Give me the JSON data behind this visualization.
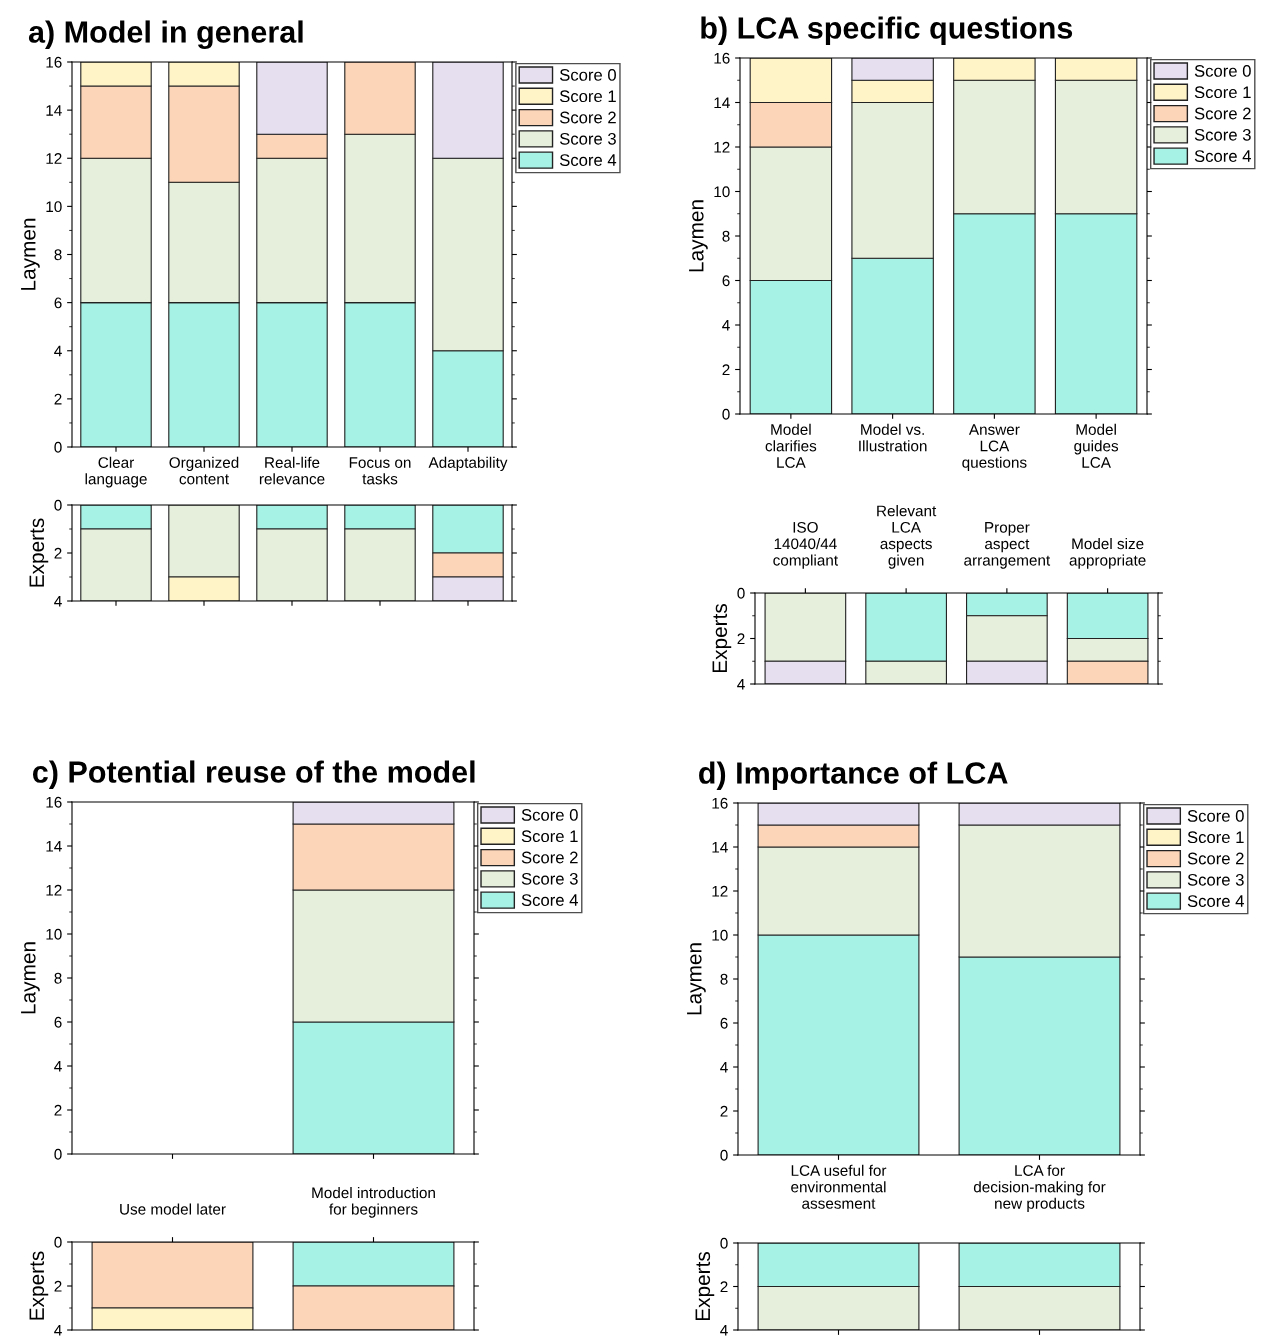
{
  "chart_data": [
    {
      "type": "bar",
      "title": "a) Model in general",
      "ylabel": "Laymen",
      "stacked": true,
      "legend": "top right",
      "categories": [
        "Clear\nlanguage",
        "Organized\ncontent",
        "Real-life\nrelevance",
        "Focus on\ntasks",
        "Adaptability"
      ],
      "ylim": [
        0,
        16
      ],
      "yticks": [
        0,
        2,
        4,
        6,
        8,
        10,
        12,
        14,
        16
      ],
      "series": [
        {
          "name": "Score 4",
          "color": "#a6f3e6",
          "values": [
            6,
            6,
            6,
            6,
            4
          ]
        },
        {
          "name": "Score 3",
          "color": "#e6efdc",
          "values": [
            6,
            5,
            6,
            7,
            8
          ]
        },
        {
          "name": "Score 2",
          "color": "#fcd5b8",
          "values": [
            3,
            4,
            1,
            3,
            0
          ]
        },
        {
          "name": "Score 1",
          "color": "#fff4c8",
          "values": [
            1,
            1,
            0,
            0,
            0
          ]
        },
        {
          "name": "Score 0",
          "color": "#e6dff0",
          "values": [
            0,
            0,
            3,
            0,
            4
          ]
        }
      ]
    },
    {
      "type": "bar",
      "ylabel": "Experts",
      "stacked": true,
      "tick_labels": "y",
      "categories": [
        null,
        null,
        null,
        null,
        null
      ],
      "ylim": [
        4,
        0
      ],
      "yticks": [
        0,
        2,
        4
      ],
      "series": [
        {
          "color": "#a6f3e6",
          "values": [
            1,
            0,
            1,
            1,
            2
          ]
        },
        {
          "color": "#e6efdc",
          "values": [
            3,
            3,
            3,
            3,
            0
          ]
        },
        {
          "color": "#fcd5b8",
          "values": [
            0,
            0,
            0,
            0,
            1
          ]
        },
        {
          "color": "#fff4c8",
          "values": [
            0,
            1,
            0,
            0,
            0
          ]
        },
        {
          "color": "#e6dff0",
          "values": [
            0,
            0,
            0,
            0,
            1
          ]
        }
      ]
    },
    {
      "type": "bar",
      "title": "b) LCA specific questions",
      "ylabel": "Laymen",
      "stacked": true,
      "legend": "top right",
      "categories": [
        "Model\nclarifies\nLCA",
        "Model vs.\nIllustration",
        "Answer\nLCA\nquestions",
        "Model\nguides\nLCA"
      ],
      "ylim": [
        0,
        16
      ],
      "yticks": [
        0,
        2,
        4,
        6,
        8,
        10,
        12,
        14,
        16
      ],
      "series": [
        {
          "name": "Score 4",
          "color": "#a6f3e6",
          "values": [
            6,
            7,
            9,
            9
          ]
        },
        {
          "name": "Score 3",
          "color": "#e6efdc",
          "values": [
            6,
            7,
            6,
            6
          ]
        },
        {
          "name": "Score 2",
          "color": "#fcd5b8",
          "values": [
            2,
            0,
            0,
            0
          ]
        },
        {
          "name": "Score 1",
          "color": "#fff4c8",
          "values": [
            2,
            1,
            1,
            1
          ]
        },
        {
          "name": "Score 0",
          "color": "#e6dff0",
          "values": [
            0,
            1,
            0,
            0
          ]
        }
      ]
    },
    {
      "type": "bar",
      "ylabel": "Experts",
      "stacked": true,
      "categories": [
        "ISO\n14040/44\ncompliant",
        "Relevant\nLCA\naspects\ngiven",
        "Proper\naspect\narrangement",
        "Model size\nappropriate"
      ],
      "ylim": [
        4,
        0
      ],
      "yticks": [
        0,
        2,
        4
      ],
      "series": [
        {
          "color": "#a6f3e6",
          "values": [
            0,
            3,
            1,
            2
          ]
        },
        {
          "color": "#e6efdc",
          "values": [
            3,
            1,
            2,
            1
          ]
        },
        {
          "color": "#fcd5b8",
          "values": [
            0,
            0,
            0,
            1
          ]
        },
        {
          "color": "#fff4c8",
          "values": [
            0,
            0,
            0,
            0
          ]
        },
        {
          "color": "#e6dff0",
          "values": [
            1,
            0,
            1,
            0
          ]
        }
      ]
    },
    {
      "type": "bar",
      "title": "c) Potential reuse of the model",
      "ylabel": "Laymen",
      "stacked": true,
      "legend": "top right",
      "tick_labels": "y",
      "categories": [
        null,
        null
      ],
      "ylim": [
        0,
        16
      ],
      "yticks": [
        0,
        2,
        4,
        6,
        8,
        10,
        12,
        14,
        16
      ],
      "series": [
        {
          "name": "Score 4",
          "color": "#a6f3e6",
          "values": [
            0,
            6
          ]
        },
        {
          "name": "Score 3",
          "color": "#e6efdc",
          "values": [
            0,
            6
          ]
        },
        {
          "name": "Score 2",
          "color": "#fcd5b8",
          "values": [
            0,
            3
          ]
        },
        {
          "name": "Score 1",
          "color": "#fff4c8",
          "values": [
            0,
            0
          ]
        },
        {
          "name": "Score 0",
          "color": "#e6dff0",
          "values": [
            0,
            1
          ]
        }
      ]
    },
    {
      "type": "bar",
      "ylabel": "Experts",
      "stacked": true,
      "categories": [
        "Use model later",
        "Model introduction\nfor beginners"
      ],
      "ylim": [
        4,
        0
      ],
      "yticks": [
        0,
        2,
        4
      ],
      "series": [
        {
          "color": "#a6f3e6",
          "values": [
            0,
            2
          ]
        },
        {
          "color": "#e6efdc",
          "values": [
            0,
            0
          ]
        },
        {
          "color": "#fcd5b8",
          "values": [
            3,
            2
          ]
        },
        {
          "color": "#fff4c8",
          "values": [
            1,
            0
          ]
        },
        {
          "color": "#e6dff0",
          "values": [
            0,
            0
          ]
        }
      ]
    },
    {
      "type": "bar",
      "title": "d) Importance of LCA",
      "ylabel": "Laymen",
      "stacked": true,
      "legend": "top right",
      "categories": [
        "LCA useful for\nenvironmental\nassesment",
        "LCA for\ndecision-making for\nnew products"
      ],
      "ylim": [
        0,
        16
      ],
      "yticks": [
        0,
        2,
        4,
        6,
        8,
        10,
        12,
        14,
        16
      ],
      "series": [
        {
          "name": "Score 4",
          "color": "#a6f3e6",
          "values": [
            10,
            9
          ]
        },
        {
          "name": "Score 3",
          "color": "#e6efdc",
          "values": [
            4,
            6
          ]
        },
        {
          "name": "Score 2",
          "color": "#fcd5b8",
          "values": [
            1,
            0
          ]
        },
        {
          "name": "Score 1",
          "color": "#fff4c8",
          "values": [
            0,
            0
          ]
        },
        {
          "name": "Score 0",
          "color": "#e6dff0",
          "values": [
            1,
            1
          ]
        }
      ]
    },
    {
      "type": "bar",
      "ylabel": "Experts",
      "stacked": true,
      "tick_labels": "y",
      "categories": [
        null,
        null
      ],
      "ylim": [
        4,
        0
      ],
      "yticks": [
        0,
        2,
        4
      ],
      "series": [
        {
          "color": "#a6f3e6",
          "values": [
            2,
            2
          ]
        },
        {
          "color": "#e6efdc",
          "values": [
            2,
            2
          ]
        },
        {
          "color": "#fcd5b8",
          "values": [
            0,
            0
          ]
        },
        {
          "color": "#fff4c8",
          "values": [
            0,
            0
          ]
        },
        {
          "color": "#e6dff0",
          "values": [
            0,
            0
          ]
        }
      ]
    }
  ]
}
